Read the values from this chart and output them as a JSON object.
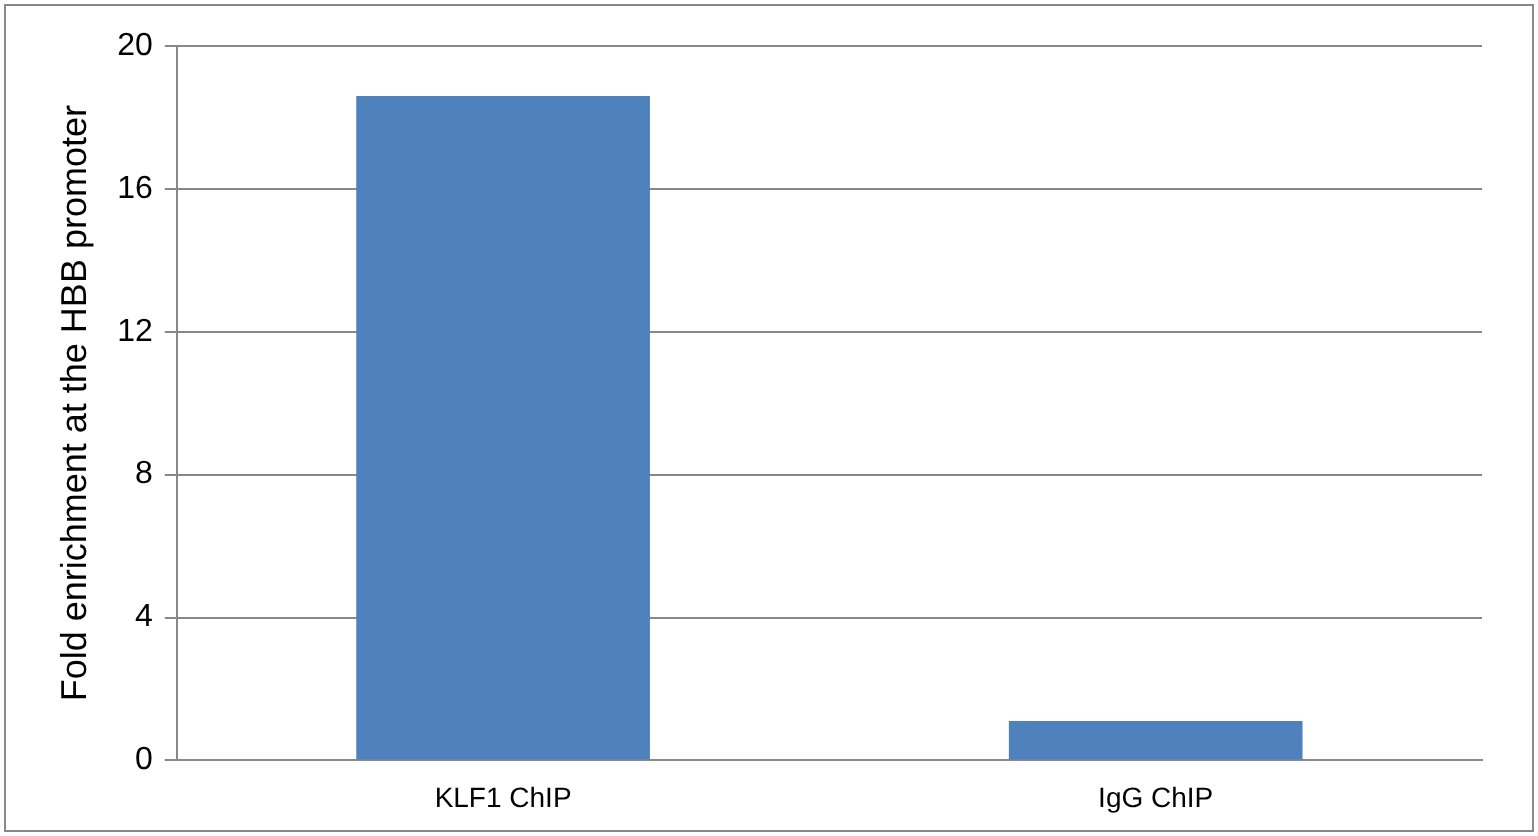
{
  "chart_data": {
    "type": "bar",
    "ylabel": "Fold enrichment at the HBB promoter",
    "categories": [
      "KLF1 ChIP",
      "IgG ChIP"
    ],
    "values": [
      18.6,
      1.1
    ],
    "color": "#4f81bd",
    "ylim": [
      0,
      20
    ],
    "yticks": [
      0,
      4,
      8,
      12,
      16,
      20
    ],
    "grid": "y",
    "legend": false
  }
}
